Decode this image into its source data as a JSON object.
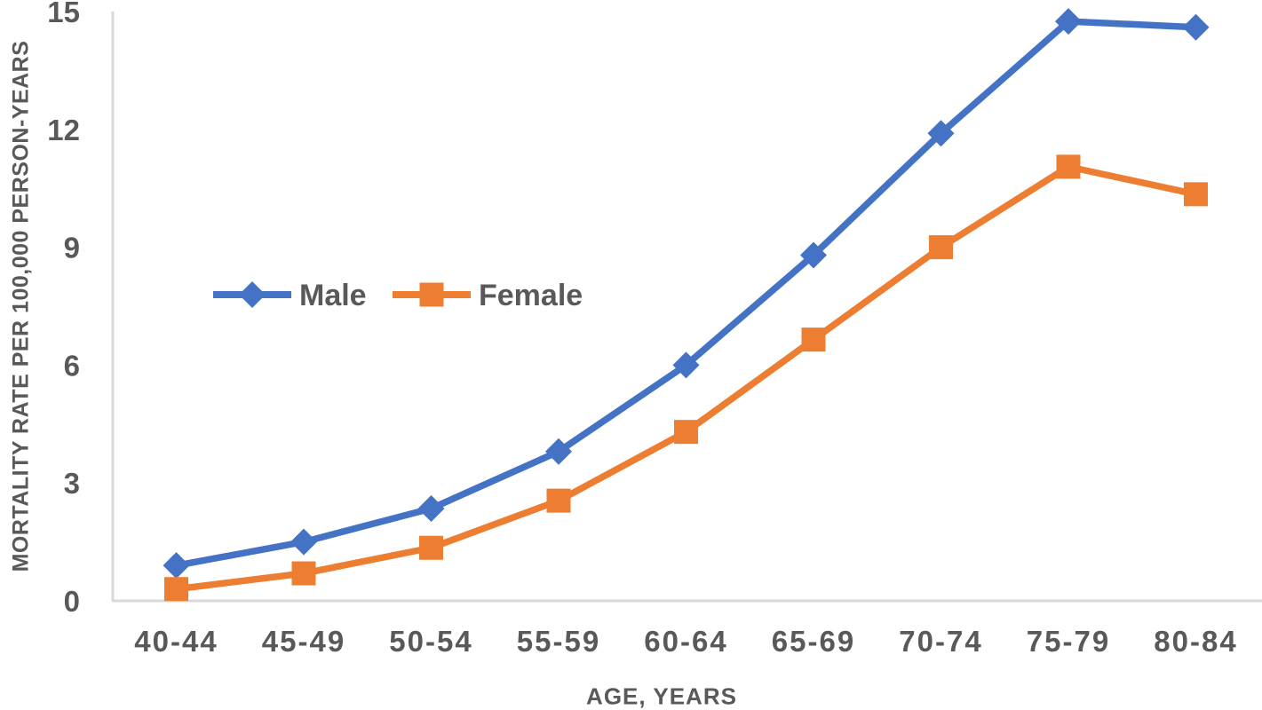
{
  "chart_data": {
    "type": "line",
    "title": "",
    "xlabel": "AGE, YEARS",
    "ylabel": "MORTALITY RATE PER 100,000 PERSON-YEARS",
    "categories": [
      "40-44",
      "45-49",
      "50-54",
      "55-59",
      "60-64",
      "65-69",
      "70-74",
      "75-79",
      "80-84"
    ],
    "series": [
      {
        "name": "Male",
        "marker": "diamond",
        "color": "#4472C4",
        "values": [
          0.9,
          1.5,
          2.35,
          3.8,
          6.0,
          8.8,
          11.9,
          14.75,
          14.6
        ]
      },
      {
        "name": "Female",
        "marker": "square",
        "color": "#ED7D31",
        "values": [
          0.3,
          0.7,
          1.35,
          2.55,
          4.3,
          6.65,
          9.0,
          11.05,
          10.35
        ]
      }
    ],
    "ylim": [
      0,
      15
    ],
    "yticks": [
      0,
      3,
      6,
      9,
      12,
      15
    ],
    "grid": false,
    "legend_position": "inside-upper-left",
    "colors": {
      "axis_line": "#D9D9D9",
      "text": "#595959",
      "background": "#FFFFFF"
    }
  }
}
